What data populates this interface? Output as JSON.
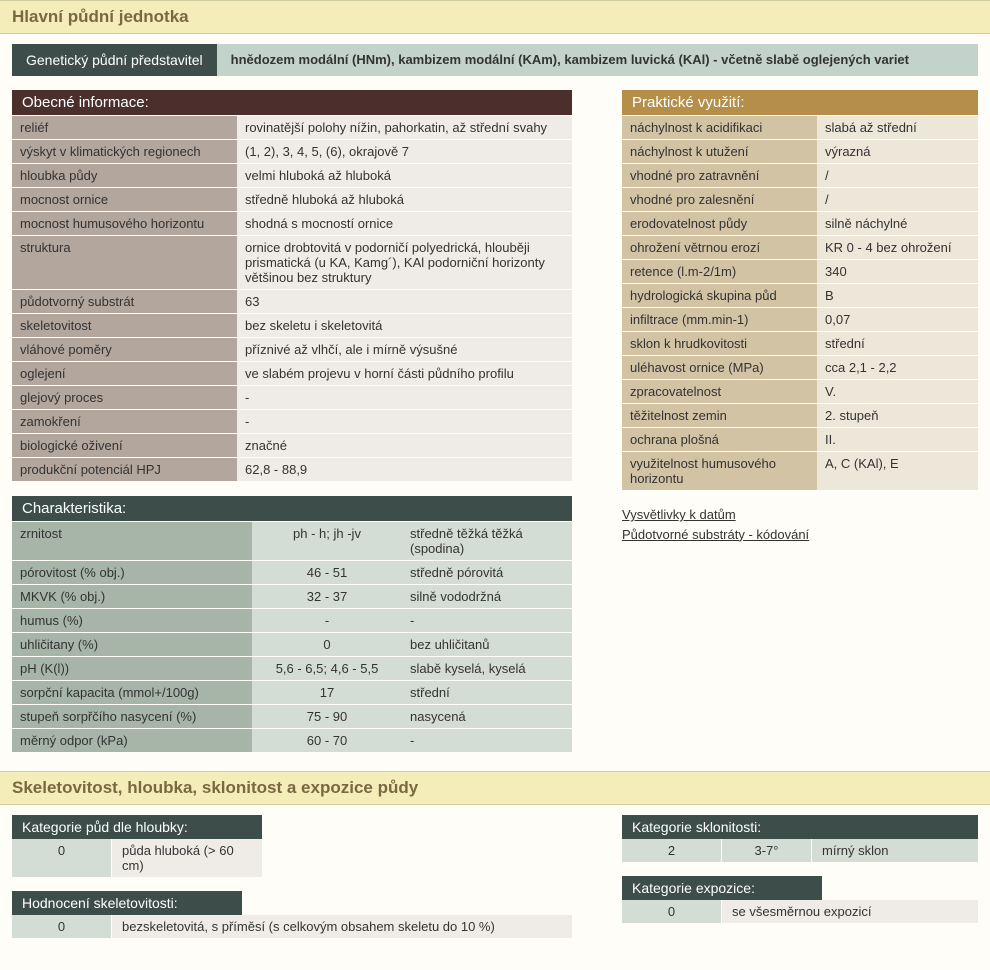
{
  "section1_title": "Hlavní půdní jednotka",
  "gen": {
    "label": "Genetický půdní představitel",
    "value": "hnědozem modální (HNm), kambizem modální (KAm), kambizem luvická (KAl) - včetně slabě oglejených variet"
  },
  "obecne": {
    "title": "Obecné informace:",
    "rows": [
      {
        "k": "reliéf",
        "v": "rovinatější polohy nížin, pahorkatin, až střední svahy"
      },
      {
        "k": "výskyt v klimatických regionech",
        "v": "(1, 2), 3, 4, 5, (6), okrajově 7"
      },
      {
        "k": "hloubka půdy",
        "v": "velmi hluboká až hluboká"
      },
      {
        "k": "mocnost ornice",
        "v": "středně hluboká až hluboká"
      },
      {
        "k": "mocnost humusového horizontu",
        "v": "shodná s mocností ornice"
      },
      {
        "k": "struktura",
        "v": "ornice drobtovitá v podorničí polyedrická, hlouběji prismatická (u KA, Kamg´), KAl podorniční horizonty většinou bez struktury"
      },
      {
        "k": "půdotvorný substrát",
        "v": "63"
      },
      {
        "k": "skeletovitost",
        "v": "bez skeletu i skeletovitá"
      },
      {
        "k": "vláhové poměry",
        "v": "příznivé až vlhčí, ale i mírně výsušné"
      },
      {
        "k": "oglejení",
        "v": " ve slabém projevu v horní části půdního profilu"
      },
      {
        "k": "glejový proces",
        "v": "-"
      },
      {
        "k": "zamokření",
        "v": "-"
      },
      {
        "k": "biologické oživení",
        "v": "značné"
      },
      {
        "k": "produkční potenciál HPJ",
        "v": "62,8 - 88,9"
      }
    ]
  },
  "char": {
    "title": "Charakteristika:",
    "rows": [
      {
        "k": "zrnitost",
        "m": "ph - h; jh -jv",
        "v": "středně těžká těžká (spodina)"
      },
      {
        "k": "pórovitost (% obj.)",
        "m": "46 - 51",
        "v": "středně pórovitá"
      },
      {
        "k": "MKVK (% obj.)",
        "m": "32 - 37",
        "v": "silně vododržná"
      },
      {
        "k": "humus (%)",
        "m": "-",
        "v": "-"
      },
      {
        "k": "uhličitany (%)",
        "m": "0",
        "v": "bez uhličitanů"
      },
      {
        "k": "pH (K(l))",
        "m": "5,6 - 6,5; 4,6 - 5,5",
        "v": "slabě kyselá, kyselá"
      },
      {
        "k": "sorpční kapacita (mmol+/100g)",
        "m": "17",
        "v": "střední"
      },
      {
        "k": "stupeň sorpřčího nasycení (%)",
        "m": "75 - 90",
        "v": "nasycená"
      },
      {
        "k": "měrný odpor (kPa)",
        "m": "60 - 70",
        "v": "-"
      }
    ]
  },
  "prakt": {
    "title": "Praktické využití:",
    "rows": [
      {
        "k": "náchylnost k acidifikaci",
        "v": "slabá až střední"
      },
      {
        "k": "náchylnost k utužení",
        "v": "výrazná"
      },
      {
        "k": "vhodné pro zatravnění",
        "v": "/"
      },
      {
        "k": "vhodné pro zalesnění",
        "v": "/"
      },
      {
        "k": "erodovatelnost půdy",
        "v": "silně náchylné"
      },
      {
        "k": "ohrožení větrnou erozí",
        "v": " KR 0 - 4 bez ohrožení"
      },
      {
        "k": "retence (l.m-2/1m)",
        "v": "340"
      },
      {
        "k": "hydrologická skupina půd",
        "v": "B"
      },
      {
        "k": "infiltrace (mm.min-1)",
        "v": "0,07"
      },
      {
        "k": "sklon k hrudkovitosti",
        "v": "střední"
      },
      {
        "k": "uléhavost ornice (MPa)",
        "v": "cca 2,1 - 2,2"
      },
      {
        "k": "zpracovatelnost",
        "v": "V."
      },
      {
        "k": "těžitelnost zemin",
        "v": "2. stupeň"
      },
      {
        "k": "ochrana plošná",
        "v": "II."
      },
      {
        "k": " využitelnost humusového horizontu",
        "v": "A, C (KAl), E"
      }
    ]
  },
  "links": {
    "l1": "Vysvětlivky k datům",
    "l2": "Půdotvorné substráty - kódování"
  },
  "section2_title": "Skeletovitost, hloubka, sklonitost a expozice půdy",
  "depth": {
    "title": "Kategorie půd dle hloubky:",
    "code": "0",
    "desc": "půda hluboká (> 60 cm)"
  },
  "skelet": {
    "title": "Hodnocení skeletovitosti:",
    "code": "0",
    "desc": "bezskeletovitá, s příměsí (s celkovým obsahem skeletu do 10 %)"
  },
  "sklon": {
    "title": "Kategorie sklonitosti:",
    "code": "2",
    "mid": "3-7°",
    "desc": "mírný sklon"
  },
  "expo": {
    "title": "Kategorie expozice:",
    "code": "0",
    "desc": "se všesměrnou expozicí"
  }
}
